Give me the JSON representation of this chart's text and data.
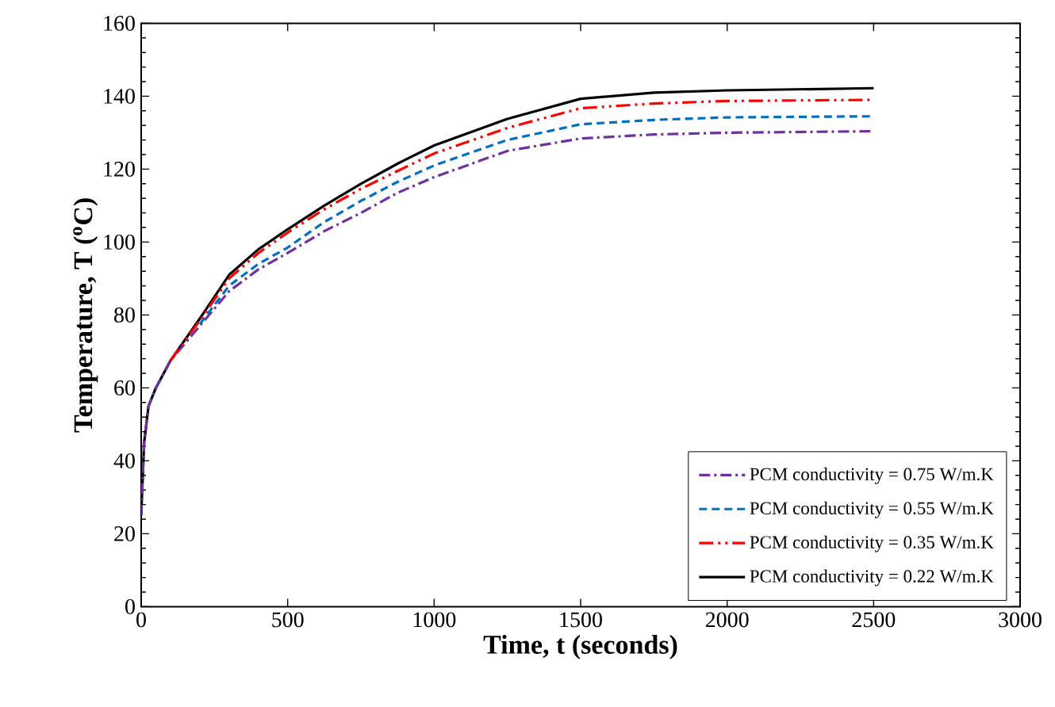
{
  "chart_data": {
    "type": "line",
    "xlabel": "Time, t (seconds)",
    "ylabel": "Temperature, T ($^{o}$C)",
    "xlim": [
      0,
      3000
    ],
    "xticks": [
      0,
      500,
      1000,
      1500,
      2000,
      2500,
      3000
    ],
    "ylim": [
      0,
      160
    ],
    "yticks": [
      0,
      20,
      40,
      60,
      80,
      100,
      120,
      140,
      160
    ],
    "grid": false,
    "legend": "bottom right",
    "marker": "none",
    "x": [
      0,
      10,
      25,
      50,
      100,
      200,
      300,
      400,
      500,
      625,
      750,
      875,
      1000,
      1250,
      1500,
      1750,
      2000,
      2500
    ],
    "series": [
      {
        "name": "PCM conductivity = 0.75 W/m.K",
        "color": "#7030a0",
        "line_style": "dashdot",
        "values": [
          25,
          45,
          55,
          60,
          67.5,
          77,
          86.5,
          92.5,
          97,
          103,
          108,
          113.5,
          117.8,
          125,
          128.4,
          129.5,
          130,
          130.4
        ]
      },
      {
        "name": "PCM conductivity = 0.55 W/m.K",
        "color": "#0070c0",
        "line_style": "dashed",
        "values": [
          null,
          null,
          null,
          null,
          null,
          77.5,
          88,
          94,
          98.5,
          105.5,
          111.3,
          116.5,
          121,
          128,
          132.3,
          133.5,
          134.2,
          134.5
        ]
      },
      {
        "name": "PCM conductivity = 0.35 W/m.K",
        "color": "#ff0000",
        "line_style": "dashdotdot",
        "values": [
          null,
          null,
          null,
          null,
          67.5,
          78.5,
          90,
          97,
          102.6,
          109,
          114.6,
          119.5,
          124.3,
          131.3,
          136.7,
          138,
          138.7,
          139
        ]
      },
      {
        "name": "PCM conductivity = 0.22 W/m.K",
        "color": "#000000",
        "line_style": "solid",
        "values": [
          25,
          45,
          55,
          60,
          67.5,
          79,
          91,
          98,
          103.5,
          110,
          116,
          121.5,
          126.5,
          133.8,
          139.3,
          141,
          141.6,
          142.2
        ]
      }
    ]
  }
}
